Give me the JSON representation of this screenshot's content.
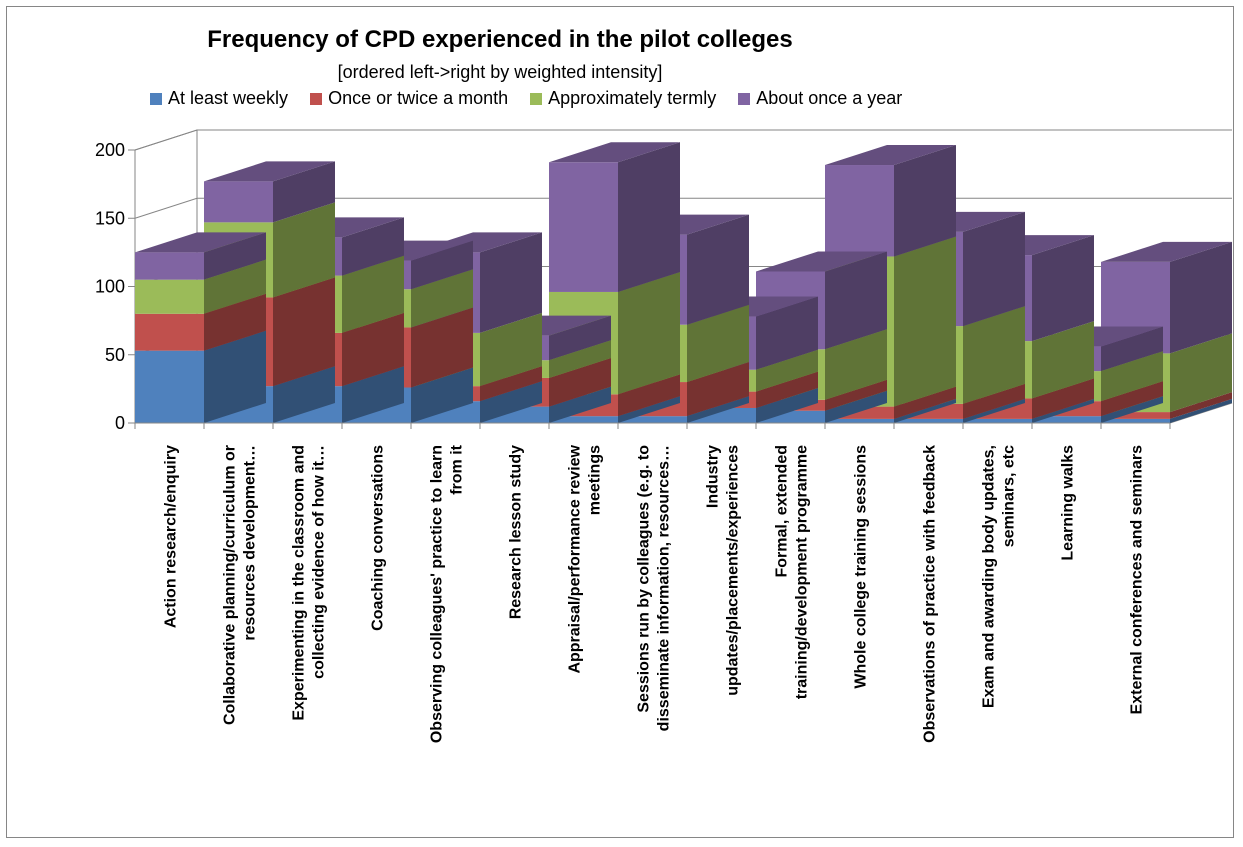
{
  "chart_data": {
    "type": "bar",
    "stacked": true,
    "three_d": true,
    "title": "Frequency of CPD experienced in the pilot colleges",
    "subtitle": "[ordered left->right by weighted intensity]",
    "ylim": [
      0,
      200
    ],
    "yticks": [
      0,
      50,
      100,
      150,
      200
    ],
    "legend_position": "top",
    "categories": [
      [
        "Action research/enquiry"
      ],
      [
        "Collaborative planning/curriculum or",
        "resources development…"
      ],
      [
        "Experimenting in the classroom and",
        "collecting evidence of how it…"
      ],
      [
        "Coaching conversations"
      ],
      [
        "Observing colleagues' practice to learn",
        "from it"
      ],
      [
        "Research lesson study"
      ],
      [
        "Appraisal/performance review",
        "meetings"
      ],
      [
        "Sessions run by colleagues (e.g. to",
        "disseminate information, resources…"
      ],
      [
        "Industry",
        "updates/placements/experiences"
      ],
      [
        "Formal, extended",
        "training/development programme"
      ],
      [
        "Whole college training sessions"
      ],
      [
        "Observations of practice with feedback"
      ],
      [
        "Exam and awarding body updates,",
        "seminars, etc"
      ],
      [
        "Learning walks"
      ],
      [
        "External conferences and seminars"
      ]
    ],
    "series": [
      {
        "name": "At least weekly",
        "color": "#4F81BD",
        "values": [
          53,
          27,
          27,
          26,
          16,
          12,
          5,
          5,
          11,
          9,
          3,
          3,
          3,
          5,
          3
        ]
      },
      {
        "name": "Once or twice a month",
        "color": "#C0504D",
        "values": [
          27,
          65,
          39,
          44,
          11,
          21,
          16,
          25,
          12,
          8,
          9,
          11,
          15,
          11,
          5
        ]
      },
      {
        "name": "Approximately termly",
        "color": "#9BBB59",
        "values": [
          25,
          55,
          42,
          28,
          39,
          13,
          75,
          42,
          16,
          37,
          110,
          57,
          42,
          22,
          43
        ]
      },
      {
        "name": "About once a year",
        "color": "#8064A2",
        "values": [
          20,
          30,
          28,
          21,
          59,
          18,
          95,
          66,
          39,
          57,
          67,
          69,
          63,
          18,
          67
        ]
      }
    ]
  }
}
